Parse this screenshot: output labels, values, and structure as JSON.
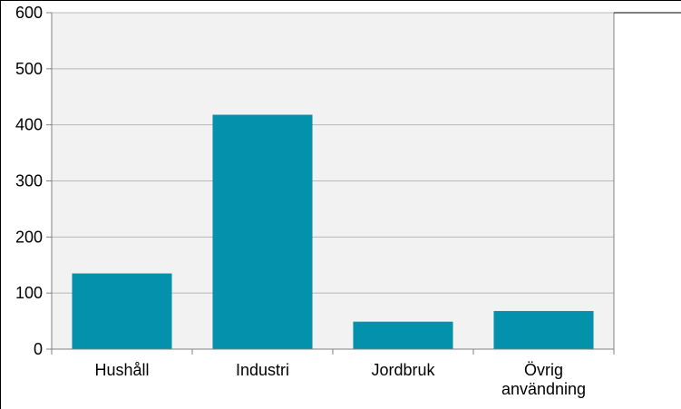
{
  "chart_data": {
    "type": "bar",
    "title": "",
    "xlabel": "",
    "ylabel": "",
    "categories": [
      [
        "Hushåll"
      ],
      [
        "Industri"
      ],
      [
        "Jordbruk"
      ],
      [
        "Övrig",
        "användning"
      ]
    ],
    "values": [
      135,
      418,
      49,
      68
    ],
    "ylim": [
      0,
      600
    ],
    "yticks": [
      "0",
      "100",
      "200",
      "300",
      "400",
      "500",
      "600"
    ],
    "grid": true,
    "legend": "none",
    "colors": {
      "bar": "#0491ab",
      "plot_background": "#f2f2f2",
      "grid": "#b8b8b8",
      "axis": "#808080"
    }
  }
}
